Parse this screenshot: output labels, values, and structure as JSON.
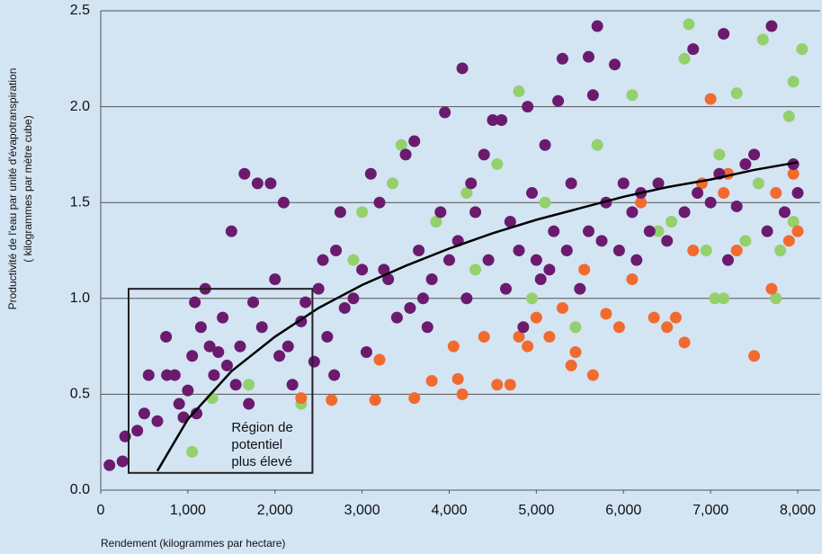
{
  "chart_data": {
    "type": "scatter",
    "y_label": [
      "Productivité de l'eau par unité d'évapotranspiration",
      "( kilogrammes par mètre cube)"
    ],
    "x_label": "Rendement (kilogrammes par hectare)",
    "xlim": [
      0,
      8000
    ],
    "xticks": [
      0,
      {
        "value": 1000,
        "label": "1,000"
      },
      {
        "value": 2000,
        "label": "2,000"
      },
      {
        "value": 3000,
        "label": "3,000"
      },
      {
        "value": 4000,
        "label": "4,000"
      },
      {
        "value": 5000,
        "label": "5,000"
      },
      {
        "value": 6000,
        "label": "6,000"
      },
      {
        "value": 7000,
        "label": "7,000"
      },
      {
        "value": 8000,
        "label": "8,000"
      }
    ],
    "ylim": [
      0,
      2.5
    ],
    "yticks": [
      {
        "value": 0,
        "label": "0.0"
      },
      0.5,
      {
        "value": 1,
        "label": "1.0"
      },
      1.5,
      {
        "value": 2,
        "label": "2.0"
      },
      2.5
    ],
    "grid": true,
    "series": [
      {
        "color": "#94d06c",
        "x": [
          1050,
          1280,
          1700,
          2300,
          2900,
          3350,
          3450,
          3850,
          4200,
          4550,
          4800,
          4950,
          5100,
          5700,
          6100,
          6400,
          6550,
          6700,
          6750,
          6950,
          7050,
          7100,
          7150,
          7300,
          7400,
          7600,
          7750,
          7900,
          7950,
          8050,
          7550,
          7800,
          7950,
          4300,
          5450,
          3000
        ],
        "values": [
          0.2,
          0.48,
          0.55,
          0.45,
          1.2,
          1.6,
          1.8,
          1.4,
          1.55,
          1.7,
          2.08,
          1.0,
          1.5,
          1.8,
          2.06,
          1.35,
          1.4,
          2.25,
          2.43,
          1.25,
          1.0,
          1.75,
          1.0,
          2.07,
          1.3,
          2.35,
          1.0,
          1.95,
          2.13,
          2.3,
          1.6,
          1.25,
          1.4,
          1.15,
          0.85,
          1.45
        ]
      },
      {
        "color": "#f26a2e",
        "x": [
          2300,
          2650,
          3150,
          3200,
          3600,
          3800,
          4050,
          4150,
          4400,
          4550,
          4700,
          4800,
          4900,
          5000,
          5150,
          5300,
          5450,
          5550,
          5650,
          5800,
          5950,
          6100,
          6200,
          6350,
          6500,
          6600,
          6700,
          6900,
          7000,
          7150,
          7200,
          7300,
          7500,
          7700,
          7750,
          7900,
          7950,
          8000,
          6800,
          5400,
          4100
        ],
        "values": [
          0.48,
          0.47,
          0.47,
          0.68,
          0.48,
          0.57,
          0.75,
          0.5,
          0.8,
          0.55,
          0.55,
          0.8,
          0.75,
          0.9,
          0.8,
          0.95,
          0.72,
          1.15,
          0.6,
          0.92,
          0.85,
          1.1,
          1.5,
          0.9,
          0.85,
          0.9,
          0.77,
          1.6,
          2.04,
          1.55,
          1.65,
          1.25,
          0.7,
          1.05,
          1.55,
          1.3,
          1.65,
          1.35,
          1.25,
          0.65,
          0.58
        ]
      },
      {
        "color": "#6b1a6e",
        "x": [
          100,
          250,
          280,
          420,
          500,
          550,
          650,
          750,
          850,
          900,
          950,
          1000,
          1050,
          1080,
          1150,
          1200,
          1250,
          1300,
          1400,
          1450,
          1500,
          1600,
          1650,
          1700,
          1750,
          1800,
          1850,
          1950,
          2000,
          2100,
          2150,
          2200,
          2300,
          2350,
          2450,
          2500,
          2550,
          2600,
          2700,
          2750,
          2800,
          2900,
          3000,
          3050,
          3100,
          3200,
          3300,
          3400,
          3500,
          3600,
          3650,
          3700,
          3800,
          3900,
          3950,
          4000,
          4100,
          4150,
          4250,
          4300,
          4400,
          4500,
          4600,
          4700,
          4800,
          4900,
          4950,
          5000,
          5050,
          5100,
          5200,
          5250,
          5300,
          5400,
          5500,
          5600,
          5650,
          5700,
          5750,
          5800,
          5900,
          5950,
          6000,
          6100,
          6200,
          6300,
          6400,
          6500,
          6700,
          6800,
          6850,
          7000,
          7100,
          7150,
          7200,
          7300,
          7400,
          7500,
          7650,
          7700,
          7850,
          7950,
          8000,
          4650,
          4450,
          3550,
          3250,
          2050,
          1550,
          1350,
          1100,
          760,
          2680,
          3750,
          4200,
          5350,
          5150,
          4850,
          5600,
          6150
        ],
        "values": [
          0.13,
          0.15,
          0.28,
          0.31,
          0.4,
          0.6,
          0.36,
          0.8,
          0.6,
          0.45,
          0.38,
          0.52,
          0.7,
          0.98,
          0.85,
          1.05,
          0.75,
          0.6,
          0.9,
          0.65,
          1.35,
          0.75,
          1.65,
          0.45,
          0.98,
          1.6,
          0.85,
          1.6,
          1.1,
          1.5,
          0.75,
          0.55,
          0.88,
          0.98,
          0.67,
          1.05,
          1.2,
          0.8,
          1.25,
          1.45,
          0.95,
          1.0,
          1.15,
          0.72,
          1.65,
          1.5,
          1.1,
          0.9,
          1.75,
          1.82,
          1.25,
          1.0,
          1.1,
          1.45,
          1.97,
          1.2,
          1.3,
          2.2,
          1.6,
          1.45,
          1.75,
          1.93,
          1.93,
          1.4,
          1.25,
          2.0,
          1.55,
          1.2,
          1.1,
          1.8,
          1.35,
          2.03,
          2.25,
          1.6,
          1.05,
          2.26,
          2.06,
          2.42,
          1.3,
          1.5,
          2.22,
          1.25,
          1.6,
          1.45,
          1.55,
          1.35,
          1.6,
          1.3,
          1.45,
          2.3,
          1.55,
          1.5,
          1.65,
          2.38,
          1.2,
          1.48,
          1.7,
          1.75,
          1.35,
          2.42,
          1.45,
          1.7,
          1.55,
          1.05,
          1.2,
          0.95,
          1.15,
          0.7,
          0.55,
          0.72,
          0.4,
          0.6,
          0.6,
          0.85,
          1.0,
          1.25,
          1.15,
          0.85,
          1.35,
          1.2
        ]
      }
    ],
    "trend_line": {
      "color": "#000000",
      "x": [
        650,
        1000,
        1500,
        2000,
        2500,
        3000,
        3500,
        4000,
        4500,
        5000,
        5500,
        6000,
        6500,
        7000,
        7500,
        8000
      ],
      "values": [
        0.1,
        0.37,
        0.62,
        0.8,
        0.95,
        1.07,
        1.17,
        1.26,
        1.34,
        1.41,
        1.47,
        1.53,
        1.58,
        1.62,
        1.67,
        1.71
      ]
    },
    "highlight_box": {
      "xlim": [
        320,
        2430
      ],
      "ylim": [
        0.09,
        1.05
      ],
      "label": [
        "Région de",
        "potentiel",
        "plus élevé"
      ]
    }
  }
}
